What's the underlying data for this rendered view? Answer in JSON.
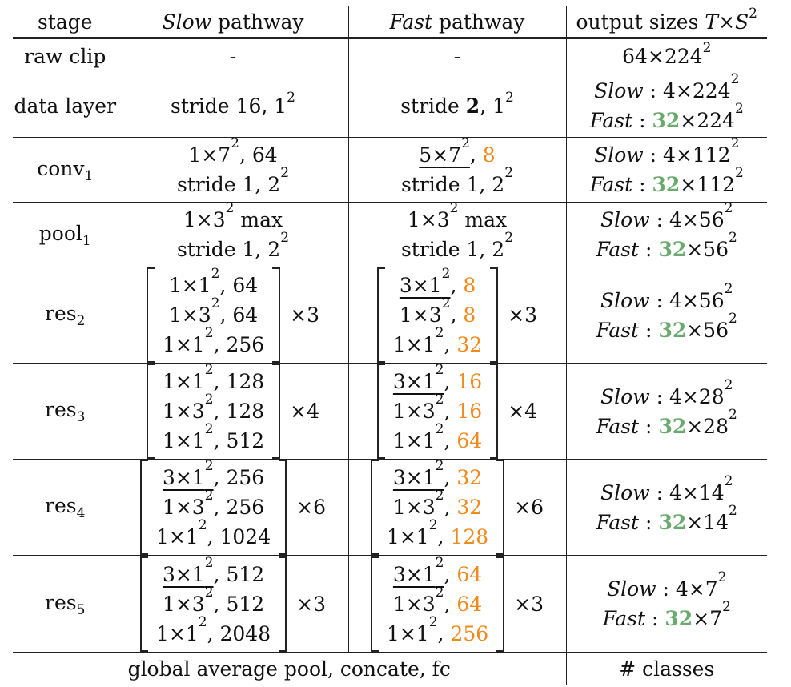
{
  "header": {
    "stage": "stage",
    "slow_em": "Slow",
    "slow_rest": " pathway",
    "fast_em": "Fast",
    "fast_rest": " pathway",
    "output_pre": "output sizes ",
    "output_T": "T",
    "output_x": "×",
    "output_S": "S",
    "output_sup": "2"
  },
  "rows": {
    "raw": {
      "stage": "raw clip",
      "slow": "-",
      "fast": "-",
      "out_a": "64×224",
      "out_sup": "2"
    },
    "data": {
      "stage": "data layer",
      "slow_a": "stride 16, 1",
      "slow_sup": "2",
      "fast_a": "stride ",
      "fast_bold": "2",
      "fast_b": ", 1",
      "fast_sup": "2",
      "out_slow_a": "Slow",
      "out_slow_b": " : 4×224",
      "out_sup": "2",
      "out_fast_a": "Fast",
      "out_fast_b": " : ",
      "out_fast_g": "32",
      "out_fast_c": "×224"
    },
    "conv1": {
      "stage": "conv",
      "sub": "1",
      "slow_l1a": "1×7",
      "slow_l1sup": "2",
      "slow_l1b": ", 64",
      "slow_l2a": "stride 1, 2",
      "slow_l2sup": "2",
      "fast_l1a": "5×7",
      "fast_l1sup": "2",
      "fast_l1b": ", ",
      "fast_l1o": "8",
      "fast_l2a": "stride 1, 2",
      "fast_l2sup": "2",
      "out_slow_a": "Slow",
      "out_slow_b": " : 4×112",
      "out_sup": "2",
      "out_fast_a": "Fast",
      "out_fast_b": " : ",
      "out_fast_g": "32",
      "out_fast_c": "×112"
    },
    "pool1": {
      "stage": "pool",
      "sub": "1",
      "slow_l1a": "1×3",
      "slow_l1sup": "2",
      "slow_l1b": " max",
      "slow_l2a": "stride 1, 2",
      "slow_l2sup": "2",
      "fast_l1a": "1×3",
      "fast_l1sup": "2",
      "fast_l1b": " max",
      "fast_l2a": "stride 1, 2",
      "fast_l2sup": "2",
      "out_slow_a": "Slow",
      "out_slow_b": " : 4×56",
      "out_sup": "2",
      "out_fast_a": "Fast",
      "out_fast_b": " : ",
      "out_fast_g": "32",
      "out_fast_c": "×56"
    },
    "res2": {
      "stage": "res",
      "sub": "2",
      "slow": [
        [
          "1×1",
          "2",
          ", 64"
        ],
        [
          "1×3",
          "2",
          ", 64"
        ],
        [
          "1×1",
          "2",
          ", 256"
        ]
      ],
      "slow_times": "×3",
      "fast": [
        [
          "3×1",
          "2",
          ", ",
          "8"
        ],
        [
          "1×3",
          "2",
          ", ",
          "8"
        ],
        [
          "1×1",
          "2",
          ", ",
          "32"
        ]
      ],
      "fast_times": "×3",
      "out_slow_a": "Slow",
      "out_slow_b": " : 4×56",
      "out_sup": "2",
      "out_fast_a": "Fast",
      "out_fast_b": " : ",
      "out_fast_g": "32",
      "out_fast_c": "×56"
    },
    "res3": {
      "stage": "res",
      "sub": "3",
      "slow": [
        [
          "1×1",
          "2",
          ", 128"
        ],
        [
          "1×3",
          "2",
          ", 128"
        ],
        [
          "1×1",
          "2",
          ", 512"
        ]
      ],
      "slow_times": "×4",
      "fast": [
        [
          "3×1",
          "2",
          ", ",
          "16"
        ],
        [
          "1×3",
          "2",
          ", ",
          "16"
        ],
        [
          "1×1",
          "2",
          ", ",
          "64"
        ]
      ],
      "fast_times": "×4",
      "out_slow_a": "Slow",
      "out_slow_b": " : 4×28",
      "out_sup": "2",
      "out_fast_a": "Fast",
      "out_fast_b": " : ",
      "out_fast_g": "32",
      "out_fast_c": "×28"
    },
    "res4": {
      "stage": "res",
      "sub": "4",
      "slow": [
        [
          "3×1",
          "2",
          ", 256"
        ],
        [
          "1×3",
          "2",
          ", 256"
        ],
        [
          "1×1",
          "2",
          ", 1024"
        ]
      ],
      "slow_times": "×6",
      "fast": [
        [
          "3×1",
          "2",
          ", ",
          "32"
        ],
        [
          "1×3",
          "2",
          ", ",
          "32"
        ],
        [
          "1×1",
          "2",
          ", ",
          "128"
        ]
      ],
      "fast_times": "×6",
      "out_slow_a": "Slow",
      "out_slow_b": " : 4×14",
      "out_sup": "2",
      "out_fast_a": "Fast",
      "out_fast_b": " : ",
      "out_fast_g": "32",
      "out_fast_c": "×14"
    },
    "res5": {
      "stage": "res",
      "sub": "5",
      "slow": [
        [
          "3×1",
          "2",
          ", 512"
        ],
        [
          "1×3",
          "2",
          ", 512"
        ],
        [
          "1×1",
          "2",
          ", 2048"
        ]
      ],
      "slow_times": "×3",
      "fast": [
        [
          "3×1",
          "2",
          ", ",
          "64"
        ],
        [
          "1×3",
          "2",
          ", ",
          "64"
        ],
        [
          "1×1",
          "2",
          ", ",
          "256"
        ]
      ],
      "fast_times": "×3",
      "out_slow_a": "Slow",
      "out_slow_b": " : 4×7",
      "out_sup": "2",
      "out_fast_a": "Fast",
      "out_fast_b": " : ",
      "out_fast_g": "32",
      "out_fast_c": "×7"
    }
  },
  "footer": {
    "left": "global average pool, concate, fc",
    "right": "# classes"
  },
  "colors": {
    "orange": "#f08a1c",
    "green": "#6aaa6e"
  }
}
